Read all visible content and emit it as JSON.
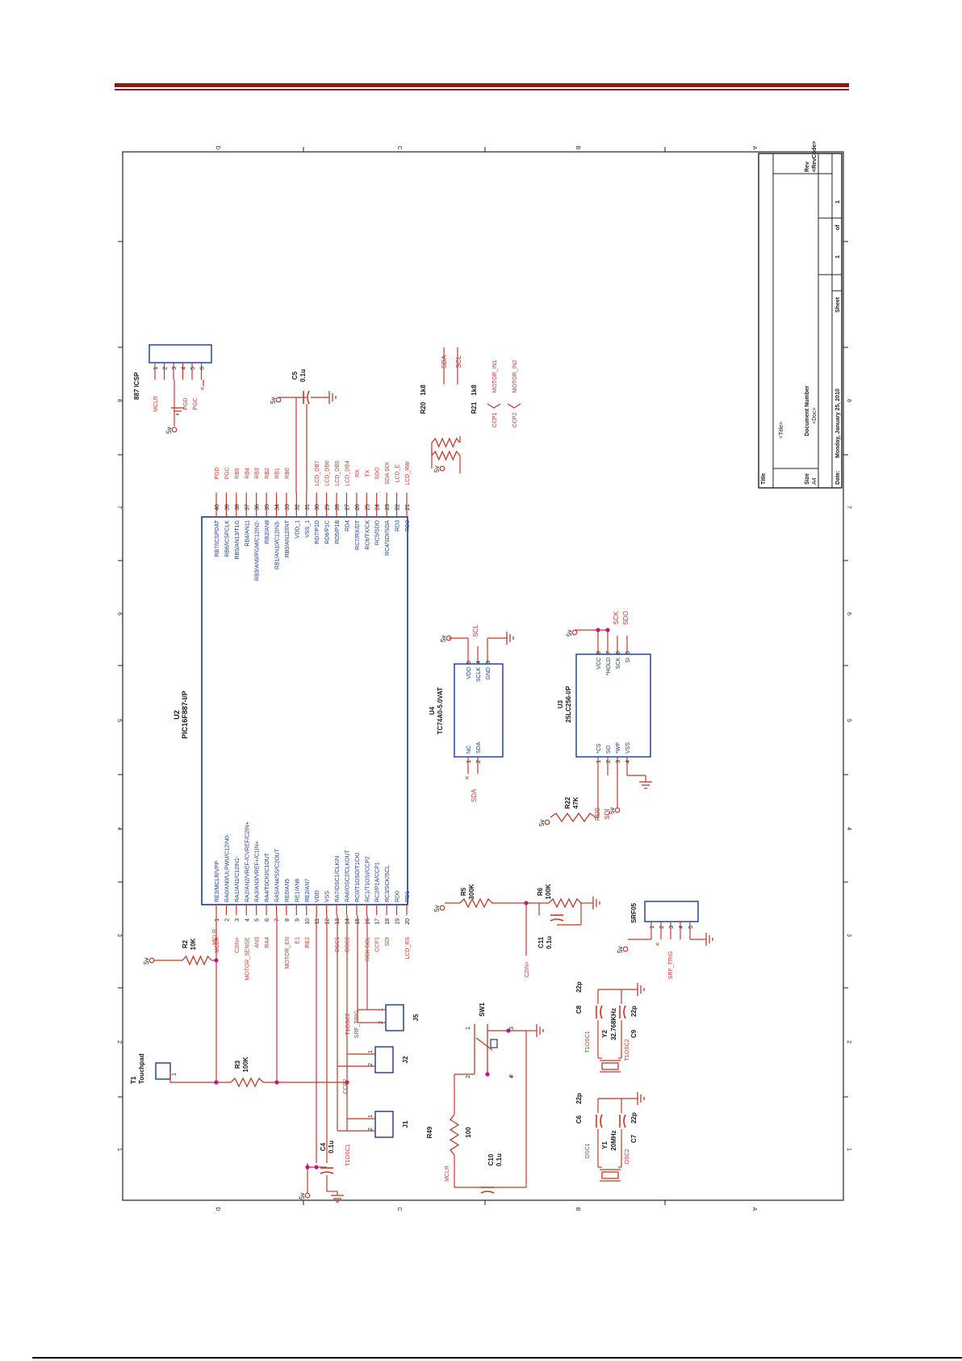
{
  "colors": {
    "wire": "#c0392b",
    "body": "#1a3a8a",
    "text": "#1a1a1a",
    "net": "#c0392b",
    "junction": "#c0168a",
    "header_rule": "#8b1a1a"
  },
  "zones": {
    "top": [
      "D",
      "C",
      "B",
      "A"
    ],
    "side": [
      "1",
      "2",
      "3",
      "4",
      "5",
      "6",
      "7",
      "8"
    ]
  },
  "titleblock": {
    "title_label": "Title",
    "title_value": "<Title>",
    "size_label": "Size",
    "size_value": "A4",
    "docnum_label": "Document Number",
    "docnum_value": "<Doc>",
    "rev_label": "Rev",
    "rev_value": "<RevCode>",
    "date_label": "Date:",
    "date_value": "Monday, January 25, 2010",
    "sheet_label": "Sheet",
    "sheet_value": "1",
    "of_label": "of",
    "of_value": "1"
  },
  "u2": {
    "ref": "U2",
    "part": "PIC16F887-I/P",
    "left_pins": [
      {
        "num": "1",
        "name": "RE3/MCLR/VPP",
        "net": "MCLR"
      },
      {
        "num": "2",
        "name": "RA0/AN0/ULPWU/C12IN0-",
        "net": ""
      },
      {
        "num": "3",
        "name": "RA1/AN1/C12IN1-",
        "net": "C2IN+"
      },
      {
        "num": "4",
        "name": "RA2/AN2/VREF-/CVREF/C2IN+",
        "net": "MOTOR_SENSE"
      },
      {
        "num": "5",
        "name": "RA3/AN3/VREF+/C1IN+",
        "net": "AN3"
      },
      {
        "num": "6",
        "name": "RA4/T0CKI/C1OUT",
        "net": "RA4"
      },
      {
        "num": "7",
        "name": "RA5/AN4/SS/C2OUT",
        "net": ""
      },
      {
        "num": "8",
        "name": "RE0/AN5",
        "net": "MOTOR_EN"
      },
      {
        "num": "9",
        "name": "RE1/AN6",
        "net": "E1"
      },
      {
        "num": "10",
        "name": "RE2/AN7",
        "net": "RE2"
      },
      {
        "num": "11",
        "name": "VDD",
        "net": ""
      },
      {
        "num": "12",
        "name": "VSS",
        "net": ""
      },
      {
        "num": "13",
        "name": "RA7/OSC1/CLKIN",
        "net": "OSC1"
      },
      {
        "num": "14",
        "name": "RA6/OSC2/CLKOUT",
        "net": "OSC2"
      },
      {
        "num": "15",
        "name": "RC0/T1OSO/T1CKI",
        "net": ""
      },
      {
        "num": "16",
        "name": "RC1/T1OSI/CCP2",
        "net": "SCK SCL"
      },
      {
        "num": "17",
        "name": "RC2/P1A/CCP1",
        "net": "CCP1"
      },
      {
        "num": "18",
        "name": "RC3/SCK/SCL",
        "net": "SDI"
      },
      {
        "num": "19",
        "name": "RD0",
        "net": ""
      },
      {
        "num": "20",
        "name": "RD1",
        "net": "LCD_RS"
      }
    ],
    "right_pins": [
      {
        "num": "40",
        "name": "RB7/ICSPDAT",
        "net": "PGD"
      },
      {
        "num": "39",
        "name": "RB6/ICSPCLK",
        "net": "PGC"
      },
      {
        "num": "38",
        "name": "RB5/AN13/T1G",
        "net": "RB5"
      },
      {
        "num": "37",
        "name": "RB4/AN11",
        "net": "RB4"
      },
      {
        "num": "36",
        "name": "RB3/AN9/PGM/C12IN2-",
        "net": "RB3"
      },
      {
        "num": "35",
        "name": "RB2/AN8",
        "net": "RB2"
      },
      {
        "num": "34",
        "name": "RB1/AN10/C12IN3-",
        "net": "RB1"
      },
      {
        "num": "33",
        "name": "RB0/AN12/INT",
        "net": "RB0"
      },
      {
        "num": "32",
        "name": "VDD_1",
        "net": ""
      },
      {
        "num": "31",
        "name": "VSS_1",
        "net": ""
      },
      {
        "num": "30",
        "name": "RD7/P1D",
        "net": "LCD_DB7"
      },
      {
        "num": "29",
        "name": "RD6/P1C",
        "net": "LCD_DB6"
      },
      {
        "num": "28",
        "name": "RD5/P1B",
        "net": "LCD_DB5"
      },
      {
        "num": "27",
        "name": "RD4",
        "net": "LCD_DB4"
      },
      {
        "num": "26",
        "name": "RC7/RX/DT",
        "net": "RX"
      },
      {
        "num": "25",
        "name": "RC6/TX/CK",
        "net": "TX"
      },
      {
        "num": "24",
        "name": "RC5/SDO",
        "net": "SDO"
      },
      {
        "num": "23",
        "name": "RC4/SDI/SDA",
        "net": "SDA SDI"
      },
      {
        "num": "22",
        "name": "RD3",
        "net": "LCD_E"
      },
      {
        "num": "21",
        "name": "RD2",
        "net": "LCD_RW"
      }
    ]
  },
  "icsp": {
    "ref": "887 ICSP",
    "pins": [
      "1",
      "2",
      "3",
      "4",
      "5",
      "6"
    ],
    "nets": [
      "MCLR",
      "PGD",
      "PGC"
    ],
    "supply": "5v"
  },
  "c5": {
    "ref": "C5",
    "value": "0.1u",
    "supply": "5v"
  },
  "r20": {
    "ref": "R20",
    "value": "1k8",
    "net": "SDA"
  },
  "r21": {
    "ref": "R21",
    "value": "1k8",
    "net": "SCL"
  },
  "ccp": {
    "ccp1": "CCP1",
    "ccp2": "CCP2",
    "motor_in1": "MOTOR_IN1",
    "motor_in2": "MOTOR_IN2",
    "supply": "5v"
  },
  "u4": {
    "ref": "U4",
    "part": "TC74A0-5.0VAT",
    "left_pins": [
      {
        "num": "1",
        "name": "NC"
      },
      {
        "num": "2",
        "name": "SDA"
      }
    ],
    "right_pins": [
      {
        "num": "5",
        "name": "VDD"
      },
      {
        "num": "4",
        "name": "SCLK"
      },
      {
        "num": "3",
        "name": "GND"
      }
    ],
    "net_sda": "SDA",
    "net_scl": "SCL",
    "supply": "5v"
  },
  "u3": {
    "ref": "U3",
    "part": "25LC256-I/P",
    "left_pins": [
      {
        "num": "1",
        "name": "*CS"
      },
      {
        "num": "2",
        "name": "SO"
      },
      {
        "num": "3",
        "name": "*WP"
      },
      {
        "num": "4",
        "name": "VSS"
      }
    ],
    "right_pins": [
      {
        "num": "8",
        "name": "VCC"
      },
      {
        "num": "7",
        "name": "*HOLD"
      },
      {
        "num": "6",
        "name": "SCK"
      },
      {
        "num": "5",
        "name": "SI"
      }
    ],
    "net_sck": "SCK",
    "net_sdo": "SDO",
    "net_rd0": "RD0",
    "net_sdi": "SDI",
    "supply": "5v"
  },
  "r22": {
    "ref": "R22",
    "value": "47K",
    "supply": "5v"
  },
  "r2": {
    "ref": "R2",
    "value": "10K",
    "net": "MCLR",
    "supply": "5v"
  },
  "r3": {
    "ref": "R3",
    "value": "100K"
  },
  "t1": {
    "ref": "T1",
    "name": "Touchpad",
    "pin": "1"
  },
  "r5": {
    "ref": "R5",
    "value": "300K",
    "supply": "5v"
  },
  "r6": {
    "ref": "R6",
    "value": "100K"
  },
  "c11": {
    "ref": "C11",
    "value": "0.1u",
    "net": "C2IN+"
  },
  "srf": {
    "ref": "SRF05",
    "pins": [
      "1",
      "2",
      "3",
      "4",
      "5"
    ],
    "net": "SRF_TRIG",
    "supply": "5v"
  },
  "c4": {
    "ref": "C4",
    "value": "0.1u",
    "supply": "5v"
  },
  "j1": {
    "ref": "J1",
    "net": "T1OSC1",
    "pins": [
      "1",
      "2"
    ]
  },
  "j2": {
    "ref": "J2",
    "net": "CCP2",
    "pins": [
      "1",
      "2"
    ]
  },
  "j5": {
    "ref": "J5",
    "nets": [
      "T1OSC2",
      "SRF_TRIG"
    ],
    "pins": [
      "1",
      "2"
    ]
  },
  "sw1": {
    "ref": "SW1",
    "pins": [
      "1",
      "2",
      "3",
      "4"
    ]
  },
  "r49": {
    "ref": "R49",
    "value": "100",
    "net": "MCLR"
  },
  "c10": {
    "ref": "C10",
    "value": "0.1u"
  },
  "c8": {
    "ref": "C8",
    "value": "22p"
  },
  "c9": {
    "ref": "C9",
    "value": "22p"
  },
  "y2": {
    "ref": "Y2",
    "value": "32.768KHz",
    "net1": "T1OSC1",
    "net2": "T1OSC2"
  },
  "c6": {
    "ref": "C6",
    "value": "22p"
  },
  "c7": {
    "ref": "C7",
    "value": "22p"
  },
  "y1": {
    "ref": "Y1",
    "value": "20MHz",
    "net1": "OSC1",
    "net2": "OSC2"
  }
}
